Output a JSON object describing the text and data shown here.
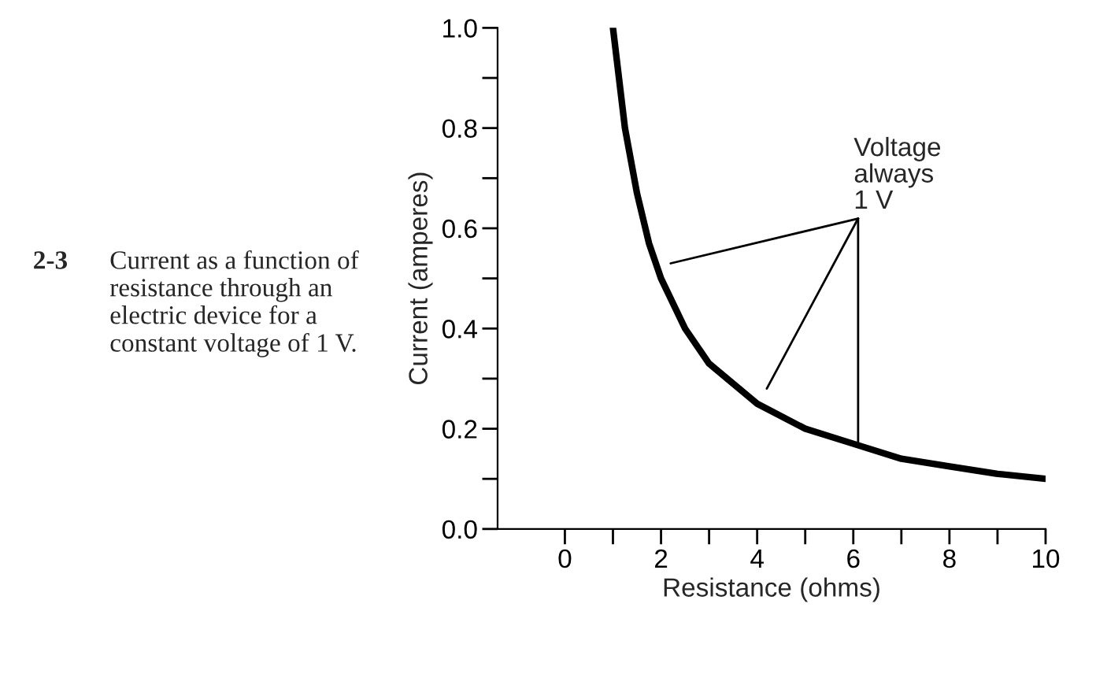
{
  "chart_data": {
    "type": "line",
    "xlabel": "Resistance (ohms)",
    "ylabel": "Current (amperes)",
    "x": [
      1,
      1.25,
      1.5,
      1.75,
      2,
      2.5,
      3,
      3.5,
      4,
      5,
      6,
      7,
      8,
      9,
      10
    ],
    "series": [
      {
        "color": "#000000",
        "values": [
          1.0,
          0.8,
          0.67,
          0.57,
          0.5,
          0.4,
          0.33,
          0.29,
          0.25,
          0.2,
          0.17,
          0.14,
          0.125,
          0.11,
          0.1
        ]
      }
    ],
    "xlim": [
      -1.4,
      10
    ],
    "ylim": [
      0,
      1.0
    ],
    "xticks": [
      0,
      {
        "value": 1,
        "label": null
      },
      2,
      {
        "value": 3,
        "label": null
      },
      4,
      {
        "value": 5,
        "label": null
      },
      6,
      {
        "value": 7,
        "label": null
      },
      8,
      {
        "value": 9,
        "label": null
      },
      10
    ],
    "yticks": [
      {
        "value": 0,
        "label": "0.0"
      },
      {
        "value": 0.1,
        "label": null
      },
      {
        "value": 0.2,
        "label": "0.2"
      },
      {
        "value": 0.3,
        "label": null
      },
      {
        "value": 0.4,
        "label": "0.4"
      },
      {
        "value": 0.5,
        "label": null
      },
      {
        "value": 0.6,
        "label": "0.6"
      },
      {
        "value": 0.7,
        "label": null
      },
      {
        "value": 0.8,
        "label": "0.8"
      },
      {
        "value": 0.9,
        "label": null
      },
      {
        "value": 1.0,
        "label": "1.0"
      }
    ],
    "grid": false,
    "legend": false,
    "marker": "none",
    "line_style": "solid",
    "annotations": [
      "2-3",
      "Current as a function of\nresistance through an\nelectric device for a\nconstant voltage of 1 V.",
      {
        "text": "Voltage\nalways\n1 V",
        "x": 6.1,
        "y": 0.17
      }
    ]
  }
}
